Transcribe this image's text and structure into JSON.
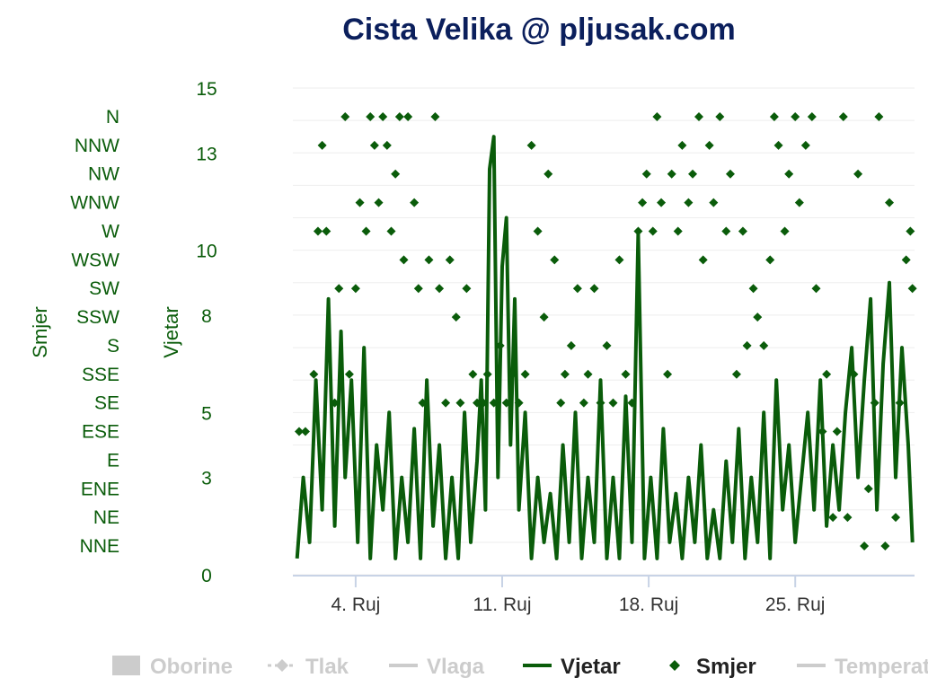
{
  "title": "Cista Velika @ pljusak.com",
  "colors": {
    "title": "#0b1f5c",
    "series": "#0a5c0a",
    "axis_text": "#0a5c0a",
    "x_tick_text": "#333333",
    "legend_inactive": "#cccccc",
    "gridline": "#eeeeee",
    "axis_line": "#c8d3e6"
  },
  "chart_data": {
    "type": "line",
    "x_axis": {
      "ticks": [
        "4. Ruj",
        "11. Ruj",
        "18. Ruj",
        "25. Ruj"
      ],
      "tick_days": [
        4,
        11,
        18,
        25
      ],
      "range_days": [
        1,
        30.7
      ]
    },
    "y_axes": [
      {
        "id": "vjetar",
        "title": "Vjetar",
        "ticks": [
          "0",
          "3",
          "5",
          "8",
          "10",
          "13",
          "15"
        ],
        "range": [
          0,
          15
        ]
      },
      {
        "id": "smjer",
        "title": "Smjer",
        "type": "category",
        "categories": [
          "NNE",
          "NE",
          "ENE",
          "E",
          "ESE",
          "SE",
          "SSE",
          "S",
          "SSW",
          "SW",
          "WSW",
          "W",
          "WNW",
          "NW",
          "NNW",
          "N"
        ]
      }
    ],
    "series": [
      {
        "name": "Vjetar",
        "type": "line",
        "axis": "vjetar",
        "x_days": [
          1.2,
          1.5,
          1.8,
          2.1,
          2.4,
          2.7,
          3.0,
          3.3,
          3.5,
          3.8,
          4.1,
          4.4,
          4.7,
          5.0,
          5.3,
          5.6,
          5.9,
          6.2,
          6.5,
          6.8,
          7.1,
          7.4,
          7.7,
          8.0,
          8.3,
          8.6,
          8.9,
          9.2,
          9.5,
          9.8,
          10.0,
          10.2,
          10.4,
          10.6,
          10.8,
          11.0,
          11.2,
          11.4,
          11.6,
          11.8,
          12.1,
          12.4,
          12.7,
          13.0,
          13.3,
          13.6,
          13.9,
          14.2,
          14.5,
          14.8,
          15.1,
          15.4,
          15.7,
          16.0,
          16.3,
          16.6,
          16.9,
          17.2,
          17.5,
          17.8,
          18.1,
          18.4,
          18.7,
          19.0,
          19.3,
          19.6,
          19.9,
          20.2,
          20.5,
          20.8,
          21.1,
          21.4,
          21.7,
          22.0,
          22.3,
          22.6,
          22.9,
          23.2,
          23.5,
          23.8,
          24.1,
          24.4,
          24.7,
          25.0,
          25.3,
          25.6,
          25.9,
          26.2,
          26.5,
          26.8,
          27.1,
          27.4,
          27.7,
          28.0,
          28.3,
          28.6,
          28.9,
          29.2,
          29.5,
          29.8,
          30.1,
          30.4,
          30.6
        ],
        "values": [
          0.5,
          3,
          1,
          6,
          2,
          8.5,
          1.5,
          7.5,
          3,
          6,
          1,
          7,
          0.5,
          4,
          2,
          5,
          0.5,
          3,
          1,
          4.5,
          0.5,
          6,
          1.5,
          4,
          0.5,
          3,
          0.5,
          5,
          1,
          3.5,
          6,
          2,
          12.5,
          13.5,
          3,
          9.5,
          11,
          4,
          8.5,
          2,
          5,
          0.5,
          3,
          1,
          2.5,
          0.5,
          4,
          1,
          5,
          0.5,
          3,
          1,
          6,
          0.5,
          3,
          0.5,
          5.5,
          1,
          10.5,
          0.5,
          3,
          0.5,
          4.5,
          1,
          2.5,
          0.5,
          3,
          1,
          4,
          0.5,
          2,
          0.5,
          3.5,
          1,
          4.5,
          0.5,
          3,
          1,
          5,
          0.5,
          6,
          2,
          4,
          1,
          3,
          5,
          2,
          6,
          1.5,
          4,
          2,
          5,
          7,
          3,
          6,
          8.5,
          2,
          6.5,
          9,
          3,
          7,
          4,
          1
        ]
      },
      {
        "name": "Smjer",
        "type": "scatter",
        "axis": "smjer",
        "points": [
          {
            "day": 1.3,
            "dir": "ESE"
          },
          {
            "day": 1.6,
            "dir": "ESE"
          },
          {
            "day": 2.0,
            "dir": "SSE"
          },
          {
            "day": 2.2,
            "dir": "W"
          },
          {
            "day": 2.4,
            "dir": "NNW"
          },
          {
            "day": 2.6,
            "dir": "W"
          },
          {
            "day": 3.0,
            "dir": "SE"
          },
          {
            "day": 3.2,
            "dir": "SW"
          },
          {
            "day": 3.5,
            "dir": "N"
          },
          {
            "day": 3.7,
            "dir": "SSE"
          },
          {
            "day": 4.0,
            "dir": "SW"
          },
          {
            "day": 4.2,
            "dir": "WNW"
          },
          {
            "day": 4.5,
            "dir": "W"
          },
          {
            "day": 4.7,
            "dir": "N"
          },
          {
            "day": 4.9,
            "dir": "NNW"
          },
          {
            "day": 5.1,
            "dir": "WNW"
          },
          {
            "day": 5.3,
            "dir": "N"
          },
          {
            "day": 5.5,
            "dir": "NNW"
          },
          {
            "day": 5.7,
            "dir": "W"
          },
          {
            "day": 5.9,
            "dir": "NW"
          },
          {
            "day": 6.1,
            "dir": "N"
          },
          {
            "day": 6.3,
            "dir": "WSW"
          },
          {
            "day": 6.5,
            "dir": "N"
          },
          {
            "day": 6.8,
            "dir": "WNW"
          },
          {
            "day": 7.0,
            "dir": "SW"
          },
          {
            "day": 7.2,
            "dir": "SE"
          },
          {
            "day": 7.5,
            "dir": "WSW"
          },
          {
            "day": 7.8,
            "dir": "N"
          },
          {
            "day": 8.0,
            "dir": "SW"
          },
          {
            "day": 8.3,
            "dir": "SE"
          },
          {
            "day": 8.5,
            "dir": "WSW"
          },
          {
            "day": 8.8,
            "dir": "SSW"
          },
          {
            "day": 9.0,
            "dir": "SE"
          },
          {
            "day": 9.3,
            "dir": "SW"
          },
          {
            "day": 9.6,
            "dir": "SSE"
          },
          {
            "day": 9.8,
            "dir": "SE"
          },
          {
            "day": 10.1,
            "dir": "SE"
          },
          {
            "day": 10.3,
            "dir": "SSE"
          },
          {
            "day": 10.6,
            "dir": "SE"
          },
          {
            "day": 10.9,
            "dir": "S"
          },
          {
            "day": 11.2,
            "dir": "SE"
          },
          {
            "day": 11.5,
            "dir": "SSE"
          },
          {
            "day": 11.8,
            "dir": "SE"
          },
          {
            "day": 12.1,
            "dir": "SSE"
          },
          {
            "day": 12.4,
            "dir": "NNW"
          },
          {
            "day": 12.7,
            "dir": "W"
          },
          {
            "day": 13.0,
            "dir": "SSW"
          },
          {
            "day": 13.2,
            "dir": "NW"
          },
          {
            "day": 13.5,
            "dir": "WSW"
          },
          {
            "day": 13.8,
            "dir": "SE"
          },
          {
            "day": 14.0,
            "dir": "SSE"
          },
          {
            "day": 14.3,
            "dir": "S"
          },
          {
            "day": 14.6,
            "dir": "SW"
          },
          {
            "day": 14.9,
            "dir": "SE"
          },
          {
            "day": 15.1,
            "dir": "SSE"
          },
          {
            "day": 15.4,
            "dir": "SW"
          },
          {
            "day": 15.7,
            "dir": "SE"
          },
          {
            "day": 16.0,
            "dir": "S"
          },
          {
            "day": 16.3,
            "dir": "SE"
          },
          {
            "day": 16.6,
            "dir": "WSW"
          },
          {
            "day": 16.9,
            "dir": "SSE"
          },
          {
            "day": 17.2,
            "dir": "SE"
          },
          {
            "day": 17.5,
            "dir": "W"
          },
          {
            "day": 17.7,
            "dir": "WNW"
          },
          {
            "day": 17.9,
            "dir": "NW"
          },
          {
            "day": 18.2,
            "dir": "W"
          },
          {
            "day": 18.4,
            "dir": "N"
          },
          {
            "day": 18.6,
            "dir": "WNW"
          },
          {
            "day": 18.9,
            "dir": "SSE"
          },
          {
            "day": 19.1,
            "dir": "NW"
          },
          {
            "day": 19.4,
            "dir": "W"
          },
          {
            "day": 19.6,
            "dir": "NNW"
          },
          {
            "day": 19.9,
            "dir": "WNW"
          },
          {
            "day": 20.1,
            "dir": "NW"
          },
          {
            "day": 20.4,
            "dir": "N"
          },
          {
            "day": 20.6,
            "dir": "WSW"
          },
          {
            "day": 20.9,
            "dir": "NNW"
          },
          {
            "day": 21.1,
            "dir": "WNW"
          },
          {
            "day": 21.4,
            "dir": "N"
          },
          {
            "day": 21.7,
            "dir": "W"
          },
          {
            "day": 21.9,
            "dir": "NW"
          },
          {
            "day": 22.2,
            "dir": "SSE"
          },
          {
            "day": 22.5,
            "dir": "W"
          },
          {
            "day": 22.7,
            "dir": "S"
          },
          {
            "day": 23.0,
            "dir": "SW"
          },
          {
            "day": 23.2,
            "dir": "SSW"
          },
          {
            "day": 23.5,
            "dir": "S"
          },
          {
            "day": 23.8,
            "dir": "WSW"
          },
          {
            "day": 24.0,
            "dir": "N"
          },
          {
            "day": 24.2,
            "dir": "NNW"
          },
          {
            "day": 24.5,
            "dir": "W"
          },
          {
            "day": 24.7,
            "dir": "NW"
          },
          {
            "day": 25.0,
            "dir": "N"
          },
          {
            "day": 25.2,
            "dir": "WNW"
          },
          {
            "day": 25.5,
            "dir": "NNW"
          },
          {
            "day": 25.8,
            "dir": "N"
          },
          {
            "day": 26.0,
            "dir": "SW"
          },
          {
            "day": 26.3,
            "dir": "ESE"
          },
          {
            "day": 26.5,
            "dir": "SSE"
          },
          {
            "day": 26.8,
            "dir": "NE"
          },
          {
            "day": 27.0,
            "dir": "ESE"
          },
          {
            "day": 27.3,
            "dir": "N"
          },
          {
            "day": 27.5,
            "dir": "NE"
          },
          {
            "day": 27.8,
            "dir": "SSE"
          },
          {
            "day": 28.0,
            "dir": "NW"
          },
          {
            "day": 28.3,
            "dir": "NNE"
          },
          {
            "day": 28.5,
            "dir": "ENE"
          },
          {
            "day": 28.8,
            "dir": "SE"
          },
          {
            "day": 29.0,
            "dir": "N"
          },
          {
            "day": 29.3,
            "dir": "NNE"
          },
          {
            "day": 29.5,
            "dir": "WNW"
          },
          {
            "day": 29.8,
            "dir": "NE"
          },
          {
            "day": 30.0,
            "dir": "SE"
          },
          {
            "day": 30.3,
            "dir": "WSW"
          },
          {
            "day": 30.5,
            "dir": "W"
          },
          {
            "day": 30.6,
            "dir": "SW"
          }
        ]
      }
    ],
    "legend": {
      "position": "bottom",
      "items": [
        {
          "label": "Oborine",
          "symbol": "box",
          "active": false
        },
        {
          "label": "Tlak",
          "symbol": "dash-diamond",
          "active": false
        },
        {
          "label": "Vlaga",
          "symbol": "line",
          "active": false
        },
        {
          "label": "Vjetar",
          "symbol": "line",
          "active": true
        },
        {
          "label": "Smjer",
          "symbol": "diamond",
          "active": true
        },
        {
          "label": "Temperat",
          "symbol": "line",
          "active": false
        }
      ]
    },
    "grid": true
  }
}
